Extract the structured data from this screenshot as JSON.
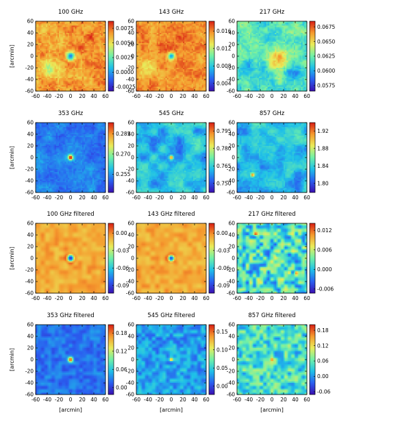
{
  "figure": {
    "type": "image-grid"
  },
  "colors": {
    "colormap": [
      "#3a0fb0",
      "#2a5ff0",
      "#1fc0e8",
      "#6ff0a8",
      "#e9ec5a",
      "#f59a2e",
      "#d81e14"
    ]
  },
  "chart_data": [
    {
      "type": "heatmap",
      "title": "100 GHz",
      "xlabel": "",
      "ylabel": "[arcmin]",
      "xlim": [
        -60,
        60
      ],
      "ylim": [
        -60,
        60
      ],
      "xticks": [
        "-60",
        "-40",
        "-20",
        "0",
        "20",
        "40",
        "60"
      ],
      "yticks": [
        "60",
        "40",
        "20",
        "0",
        "-20",
        "-40",
        "-60"
      ],
      "colorbar_ticks": [
        "0.0075",
        "0.0050",
        "0.0025",
        "0.0000",
        "-0.0025"
      ],
      "colorbar_tick_pos": [
        0.9,
        0.69,
        0.48,
        0.27,
        0.06
      ],
      "bg": 0.82,
      "noise": 0.08,
      "noise_scale": 3,
      "blob_scale": 16,
      "blob_amp": 0.08,
      "blobs": [
        {
          "x": -40,
          "y": -20,
          "r": 12,
          "amp": -0.22
        },
        {
          "x": 30,
          "y": 20,
          "r": 18,
          "amp": 0.06
        }
      ],
      "sources": [
        {
          "x": 0,
          "y": 0,
          "r": 5,
          "amp": -0.55
        }
      ],
      "ring": null
    },
    {
      "type": "heatmap",
      "title": "143 GHz",
      "xlabel": "",
      "ylabel": "",
      "xlim": [
        -60,
        60
      ],
      "ylim": [
        -60,
        60
      ],
      "xticks": [
        "-60",
        "-40",
        "-20",
        "0",
        "20",
        "40",
        "60"
      ],
      "yticks": [
        "60",
        "40",
        "20",
        "0",
        "-20",
        "-40",
        "-60"
      ],
      "colorbar_ticks": [
        "0.016",
        "0.012",
        "0.008",
        "0.004"
      ],
      "colorbar_tick_pos": [
        0.86,
        0.61,
        0.36,
        0.11
      ],
      "bg": 0.84,
      "noise": 0.07,
      "noise_scale": 3,
      "blob_scale": 16,
      "blob_amp": 0.07,
      "blobs": [
        {
          "x": -40,
          "y": -20,
          "r": 12,
          "amp": -0.2
        },
        {
          "x": 20,
          "y": 10,
          "r": 20,
          "amp": 0.06
        }
      ],
      "sources": [
        {
          "x": 0,
          "y": 0,
          "r": 4.5,
          "amp": -0.6
        }
      ],
      "ring": null
    },
    {
      "type": "heatmap",
      "title": "217 GHz",
      "xlabel": "",
      "ylabel": "",
      "xlim": [
        -60,
        60
      ],
      "ylim": [
        -60,
        60
      ],
      "xticks": [
        "-60",
        "-40",
        "-20",
        "0",
        "20",
        "40",
        "60"
      ],
      "yticks": [
        "60",
        "40",
        "20",
        "0",
        "-20",
        "-40",
        "-60"
      ],
      "colorbar_ticks": [
        "0.0675",
        "0.0650",
        "0.0625",
        "0.0600",
        "0.0575"
      ],
      "colorbar_tick_pos": [
        0.92,
        0.71,
        0.5,
        0.29,
        0.08
      ],
      "bg": 0.45,
      "noise": 0.08,
      "noise_scale": 3,
      "blob_scale": 14,
      "blob_amp": 0.1,
      "blobs": [
        {
          "x": 10,
          "y": 0,
          "r": 14,
          "amp": 0.28
        },
        {
          "x": -40,
          "y": -25,
          "r": 12,
          "amp": -0.18
        },
        {
          "x": 40,
          "y": -30,
          "r": 10,
          "amp": -0.12
        },
        {
          "x": -20,
          "y": 40,
          "r": 10,
          "amp": -0.05
        }
      ],
      "sources": [],
      "ring": null
    },
    {
      "type": "heatmap",
      "title": "353 GHz",
      "xlabel": "",
      "ylabel": "[arcmin]",
      "xlim": [
        -60,
        60
      ],
      "ylim": [
        -60,
        60
      ],
      "xticks": [
        "-60",
        "-40",
        "-20",
        "0",
        "20",
        "40",
        "60"
      ],
      "yticks": [
        "60",
        "40",
        "20",
        "0",
        "-20",
        "-40",
        "-60"
      ],
      "colorbar_ticks": [
        "0.285",
        "0.270",
        "0.255"
      ],
      "colorbar_tick_pos": [
        0.84,
        0.55,
        0.26
      ],
      "bg": 0.22,
      "noise": 0.05,
      "noise_scale": 3,
      "blob_scale": 18,
      "blob_amp": 0.06,
      "blobs": [],
      "sources": [
        {
          "x": 0,
          "y": 0,
          "r": 3,
          "amp": 0.8
        }
      ],
      "ring": null
    },
    {
      "type": "heatmap",
      "title": "545 GHz",
      "xlabel": "",
      "ylabel": "",
      "xlim": [
        -60,
        60
      ],
      "ylim": [
        -60,
        60
      ],
      "xticks": [
        "-60",
        "-40",
        "-20",
        "0",
        "20",
        "40",
        "60"
      ],
      "yticks": [
        "60",
        "40",
        "20",
        "0",
        "-20",
        "-40",
        "-60"
      ],
      "colorbar_ticks": [
        "0.795",
        "0.780",
        "0.765",
        "0.750"
      ],
      "colorbar_tick_pos": [
        0.88,
        0.63,
        0.38,
        0.13
      ],
      "bg": 0.33,
      "noise": 0.05,
      "noise_scale": 3,
      "blob_scale": 15,
      "blob_amp": 0.14,
      "blobs": [],
      "sources": [
        {
          "x": 0,
          "y": 0,
          "r": 2.5,
          "amp": 0.6
        }
      ],
      "ring": null
    },
    {
      "type": "heatmap",
      "title": "857 GHz",
      "xlabel": "",
      "ylabel": "",
      "xlim": [
        -60,
        60
      ],
      "ylim": [
        -60,
        60
      ],
      "xticks": [
        "-60",
        "-40",
        "-20",
        "0",
        "20",
        "40",
        "60"
      ],
      "yticks": [
        "60",
        "40",
        "20",
        "0",
        "-20",
        "-40",
        "-60"
      ],
      "colorbar_ticks": [
        "1.92",
        "1.88",
        "1.84",
        "1.80"
      ],
      "colorbar_tick_pos": [
        0.88,
        0.63,
        0.38,
        0.13
      ],
      "bg": 0.33,
      "noise": 0.05,
      "noise_scale": 3,
      "blob_scale": 15,
      "blob_amp": 0.13,
      "blobs": [
        {
          "x": -20,
          "y": -40,
          "r": 18,
          "amp": -0.1
        }
      ],
      "sources": [
        {
          "x": -33,
          "y": -30,
          "r": 2.2,
          "amp": 0.6
        }
      ],
      "ring": null
    },
    {
      "type": "heatmap",
      "title": "100 GHz filtered",
      "xlabel": "",
      "ylabel": "[arcmin]",
      "xlim": [
        -60,
        60
      ],
      "ylim": [
        -60,
        60
      ],
      "xticks": [
        "-60",
        "-40",
        "-20",
        "0",
        "20",
        "40",
        "60"
      ],
      "yticks": [
        "60",
        "40",
        "20",
        "0",
        "-20",
        "-40",
        "-60"
      ],
      "colorbar_ticks": [
        "0.00",
        "-0.03",
        "-0.06",
        "-0.09"
      ],
      "colorbar_tick_pos": [
        0.86,
        0.61,
        0.36,
        0.11
      ],
      "bg": 0.8,
      "noise": 0.0,
      "noise_scale": 3,
      "blob_scale": 8,
      "blob_amp": 0.07,
      "blobs": [],
      "sources": [
        {
          "x": 0,
          "y": 0,
          "r": 4,
          "amp": -0.72
        }
      ],
      "ring": {
        "x": 0,
        "y": 0,
        "r": 8,
        "w": 2.2,
        "amp": 0.14
      }
    },
    {
      "type": "heatmap",
      "title": "143 GHz filtered",
      "xlabel": "",
      "ylabel": "",
      "xlim": [
        -60,
        60
      ],
      "ylim": [
        -60,
        60
      ],
      "xticks": [
        "-60",
        "-40",
        "-20",
        "0",
        "20",
        "40",
        "60"
      ],
      "yticks": [
        "60",
        "40",
        "20",
        "0",
        "-20",
        "-40",
        "-60"
      ],
      "colorbar_ticks": [
        "0.00",
        "-0.03",
        "-0.06",
        "-0.09"
      ],
      "colorbar_tick_pos": [
        0.86,
        0.61,
        0.36,
        0.11
      ],
      "bg": 0.8,
      "noise": 0.0,
      "noise_scale": 3,
      "blob_scale": 8,
      "blob_amp": 0.07,
      "blobs": [],
      "sources": [
        {
          "x": 0,
          "y": 0,
          "r": 3.5,
          "amp": -0.7
        }
      ],
      "ring": {
        "x": 0,
        "y": 0,
        "r": 7,
        "w": 2,
        "amp": 0.12
      }
    },
    {
      "type": "heatmap",
      "title": "217 GHz filtered",
      "xlabel": "",
      "ylabel": "",
      "xlim": [
        -60,
        60
      ],
      "ylim": [
        -60,
        60
      ],
      "xticks": [
        "-60",
        "-40",
        "-20",
        "0",
        "20",
        "40",
        "60"
      ],
      "yticks": [
        "60",
        "40",
        "20",
        "0",
        "-20",
        "-40",
        "-60"
      ],
      "colorbar_ticks": [
        "0.012",
        "0.006",
        "0.000",
        "-0.006"
      ],
      "colorbar_tick_pos": [
        0.9,
        0.62,
        0.34,
        0.06
      ],
      "bg": 0.42,
      "noise": 0.0,
      "noise_scale": 3,
      "blob_scale": 6,
      "blob_amp": 0.26,
      "blobs": [],
      "sources": [
        {
          "x": -28,
          "y": 42,
          "r": 2,
          "amp": 0.45
        },
        {
          "x": 42,
          "y": -25,
          "r": 2.2,
          "amp": 0.5
        },
        {
          "x": 30,
          "y": -25,
          "r": 1.8,
          "amp": 0.35
        },
        {
          "x": 5,
          "y": 5,
          "r": 1.8,
          "amp": 0.3
        }
      ],
      "ring": null
    },
    {
      "type": "heatmap",
      "title": "353 GHz filtered",
      "xlabel": "[arcmin]",
      "ylabel": "[arcmin]",
      "xlim": [
        -60,
        60
      ],
      "ylim": [
        -60,
        60
      ],
      "xticks": [
        "-60",
        "-40",
        "-20",
        "0",
        "20",
        "40",
        "60"
      ],
      "yticks": [
        "60",
        "40",
        "20",
        "0",
        "-20",
        "-40",
        "-60"
      ],
      "colorbar_ticks": [
        "0.18",
        "0.12",
        "0.06",
        "0.00"
      ],
      "colorbar_tick_pos": [
        0.88,
        0.62,
        0.36,
        0.1
      ],
      "bg": 0.2,
      "noise": 0.0,
      "noise_scale": 3,
      "blob_scale": 6,
      "blob_amp": 0.08,
      "blobs": [],
      "sources": [
        {
          "x": 0,
          "y": 0,
          "r": 2.5,
          "amp": 0.8
        }
      ],
      "ring": {
        "x": 0,
        "y": 0,
        "r": 4.5,
        "w": 1.3,
        "amp": 0.12
      }
    },
    {
      "type": "heatmap",
      "title": "545 GHz filtered",
      "xlabel": "[arcmin]",
      "ylabel": "",
      "xlim": [
        -60,
        60
      ],
      "ylim": [
        -60,
        60
      ],
      "xticks": [
        "-60",
        "-40",
        "-20",
        "0",
        "20",
        "40",
        "60"
      ],
      "yticks": [
        "60",
        "40",
        "20",
        "0",
        "-20",
        "-40",
        "-60"
      ],
      "colorbar_ticks": [
        "0.15",
        "0.10",
        "0.05",
        "0.00"
      ],
      "colorbar_tick_pos": [
        0.9,
        0.64,
        0.38,
        0.12
      ],
      "bg": 0.28,
      "noise": 0.0,
      "noise_scale": 3,
      "blob_scale": 6,
      "blob_amp": 0.12,
      "blobs": [],
      "sources": [
        {
          "x": 0,
          "y": 0,
          "r": 2,
          "amp": 0.6
        }
      ],
      "ring": null
    },
    {
      "type": "heatmap",
      "title": "857 GHz filtered",
      "xlabel": "[arcmin]",
      "ylabel": "",
      "xlim": [
        -60,
        60
      ],
      "ylim": [
        -60,
        60
      ],
      "xticks": [
        "-60",
        "-40",
        "-20",
        "0",
        "20",
        "40",
        "60"
      ],
      "yticks": [
        "60",
        "40",
        "20",
        "0",
        "-20",
        "-40",
        "-60"
      ],
      "colorbar_ticks": [
        "0.18",
        "0.12",
        "0.06",
        "0.00",
        "-0.06"
      ],
      "colorbar_tick_pos": [
        0.92,
        0.7,
        0.48,
        0.26,
        0.04
      ],
      "bg": 0.42,
      "noise": 0.0,
      "noise_scale": 3,
      "blob_scale": 6,
      "blob_amp": 0.2,
      "blobs": [],
      "sources": [
        {
          "x": 0,
          "y": 0,
          "r": 2,
          "amp": 0.5
        }
      ],
      "ring": null
    }
  ]
}
